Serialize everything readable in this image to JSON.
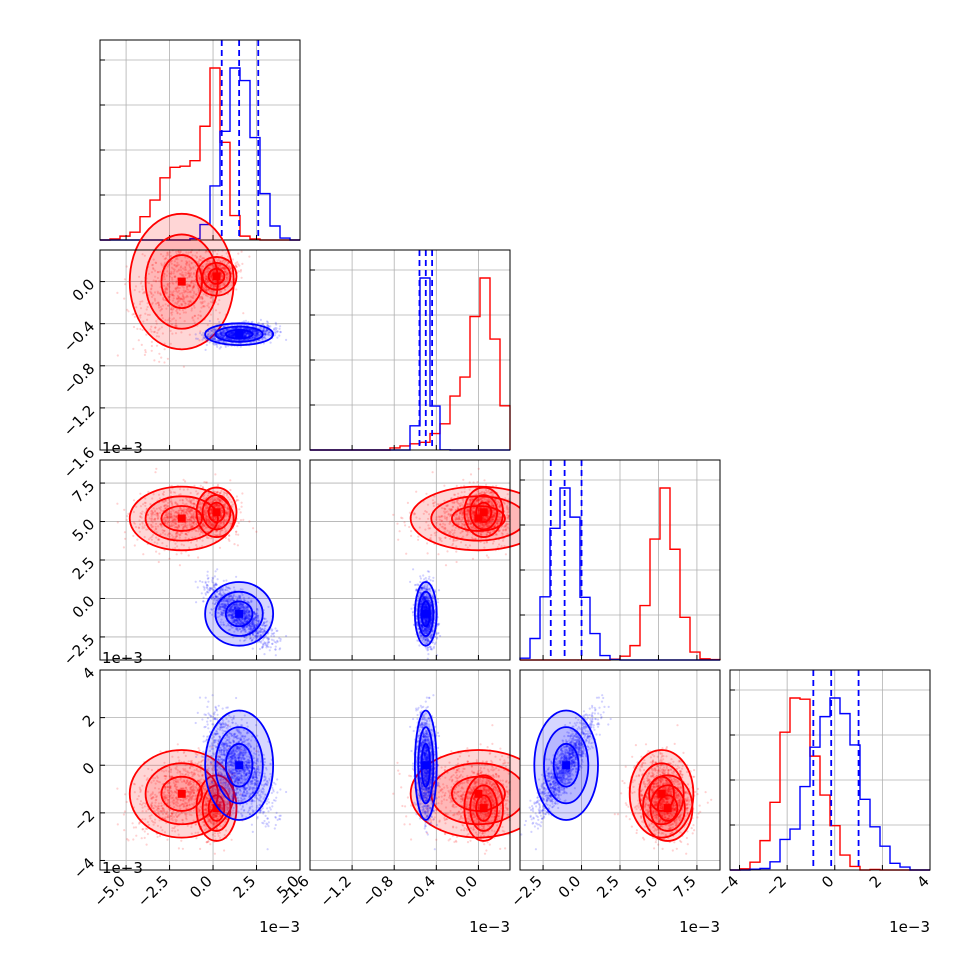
{
  "chart_data": {
    "type": "scatter",
    "layout": "corner",
    "grid": true,
    "colors": {
      "series_a": "#ff0000",
      "series_b": "#0000ff"
    },
    "parameters": [
      {
        "range": [
          -6.5,
          5.0
        ],
        "ticks": [
          -5.0,
          -2.5,
          0.0,
          2.5,
          5.0
        ],
        "tick_labels": [
          "−5.0",
          "−2.5",
          "0.0",
          "2.5",
          "5.0"
        ],
        "offset": "1e−3"
      },
      {
        "range": [
          -1.6,
          0.3
        ],
        "ticks": [
          -1.6,
          -1.2,
          -0.8,
          -0.4,
          0.0
        ],
        "tick_labels": [
          "−1.6",
          "−1.2",
          "−0.8",
          "−0.4",
          "0.0"
        ],
        "offset": "1e−3"
      },
      {
        "range": [
          -4.0,
          9.0
        ],
        "ticks": [
          -2.5,
          0.0,
          2.5,
          5.0,
          7.5
        ],
        "tick_labels": [
          "−2.5",
          "0.0",
          "2.5",
          "5.0",
          "7.5"
        ],
        "offset": "1e−3"
      },
      {
        "range": [
          -4.4,
          4.0
        ],
        "ticks": [
          -4,
          -2,
          0,
          2,
          4
        ],
        "tick_labels": [
          "−4",
          "−2",
          "0",
          "2",
          "4"
        ],
        "offset": "1e−3"
      }
    ],
    "series": [
      {
        "color": "#ff0000",
        "components": [
          {
            "weight": 0.6,
            "mean": [
              -1.8,
              0.0,
              5.2,
              -1.2
            ],
            "sd": [
              1.3,
              0.28,
              0.9,
              0.8
            ]
          },
          {
            "weight": 0.4,
            "mean": [
              0.2,
              0.05,
              5.6,
              -1.8
            ],
            "sd": [
              0.5,
              0.08,
              0.7,
              0.6
            ]
          }
        ],
        "contour_centers": [
          [
            -1.5,
            0.0
          ],
          [
            -1.6,
            5.3
          ],
          [
            0.0,
            5.3
          ],
          [
            -1.5,
            -1.5
          ],
          [
            -0.05,
            5.3
          ],
          [
            -0.05,
            -1.5
          ],
          [
            5.3,
            -1.5
          ]
        ]
      },
      {
        "color": "#0000ff",
        "components": [
          {
            "weight": 1.0,
            "mean": [
              1.5,
              -0.5,
              -1.0,
              0.0
            ],
            "sd": [
              0.85,
              0.045,
              0.9,
              1.0
            ]
          }
        ],
        "contour_centers": [
          [
            1.5,
            -0.5
          ],
          [
            1.5,
            -1.0
          ],
          [
            1.5,
            0.0
          ],
          [
            -0.5,
            -1.0
          ],
          [
            -0.5,
            0.0
          ],
          [
            -1.0,
            0.0
          ]
        ]
      }
    ],
    "quantiles": [
      {
        "series": "series_b",
        "param": 0,
        "values": [
          0.5,
          1.5,
          2.6
        ]
      },
      {
        "series": "series_b",
        "param": 1,
        "values": [
          -0.56,
          -0.5,
          -0.44
        ]
      },
      {
        "series": "series_b",
        "param": 2,
        "values": [
          -2.0,
          -1.1,
          0.0
        ]
      },
      {
        "series": "series_b",
        "param": 3,
        "values": [
          -0.9,
          -0.15,
          1.0
        ]
      }
    ]
  }
}
